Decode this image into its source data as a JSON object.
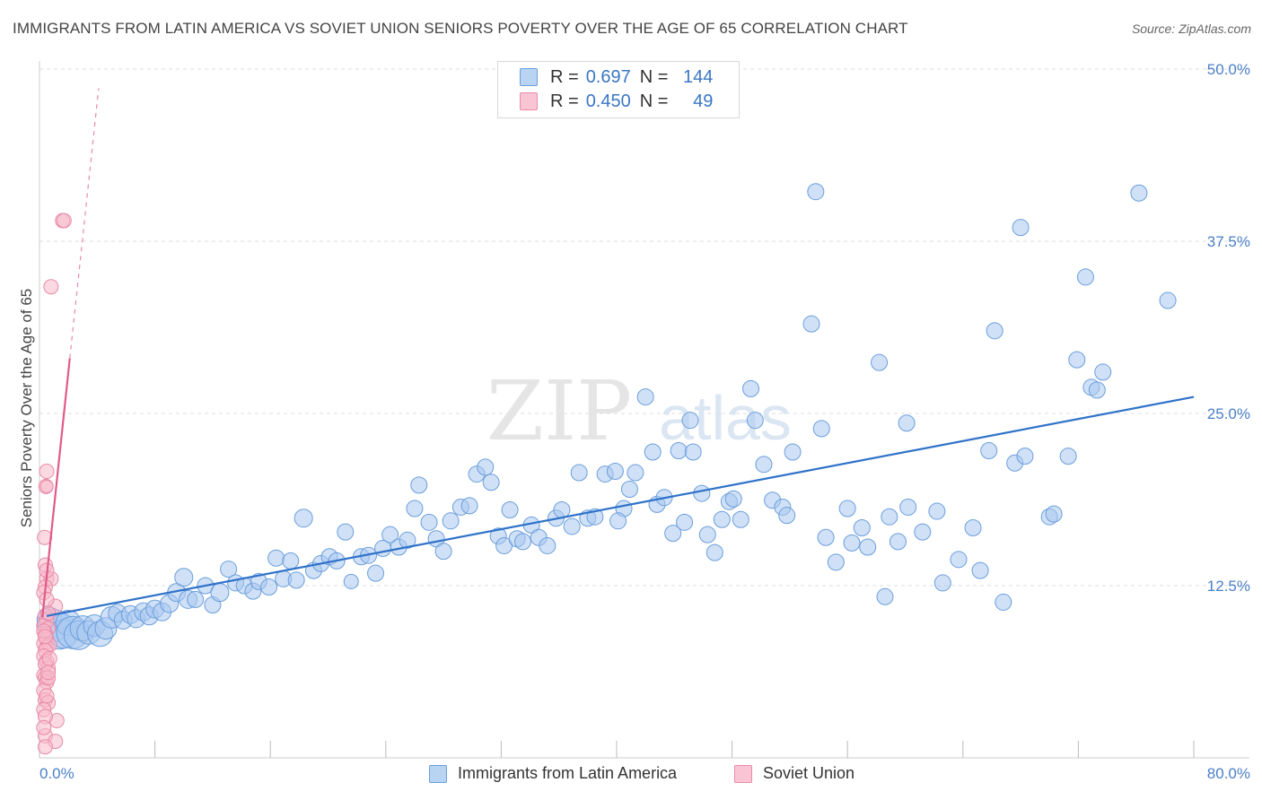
{
  "title": "IMMIGRANTS FROM LATIN AMERICA VS SOVIET UNION SENIORS POVERTY OVER THE AGE OF 65 CORRELATION CHART",
  "source": "Source: ZipAtlas.com",
  "watermark": {
    "zip": "ZIP",
    "atlas": "atlas"
  },
  "legend": {
    "rows": [
      {
        "r_label": "R =",
        "r_value": "0.697",
        "n_label": "N =",
        "n_value": "144"
      },
      {
        "r_label": "R =",
        "r_value": "0.450",
        "n_label": "N =",
        "n_value": "49"
      }
    ]
  },
  "colors": {
    "blue_fill": "#a9c8f0",
    "blue_stroke": "#6a9edb",
    "blue_line": "#2f72c9",
    "pink_fill": "#f7b9cb",
    "pink_stroke": "#e98aa8",
    "pink_line": "#e05a8a",
    "grid": "#dedede",
    "tick_label": "#4a7fc7"
  },
  "chart_data": {
    "type": "scatter",
    "xlabel": "",
    "ylabel": "Seniors Poverty Over the Age of 65",
    "xlim": [
      0,
      80
    ],
    "ylim": [
      0,
      50
    ],
    "x_tick_labels": [
      "0.0%",
      "80.0%"
    ],
    "y_ticks": [
      12.5,
      25.0,
      37.5,
      50.0
    ],
    "y_tick_labels": [
      "12.5%",
      "25.0%",
      "37.5%",
      "50.0%"
    ],
    "grid": true,
    "legend_position": "top-center",
    "series": [
      {
        "name": "Immigrants from Latin America",
        "color": "blue",
        "trendline": {
          "x": [
            0.5,
            80
          ],
          "y": [
            10.3,
            26.2
          ]
        },
        "points": [
          [
            0.7,
            10.0,
            14
          ],
          [
            1.0,
            9.6,
            18
          ],
          [
            1.4,
            9.2,
            20
          ],
          [
            1.7,
            9.0,
            16
          ],
          [
            2.0,
            9.8,
            14
          ],
          [
            2.3,
            9.1,
            18
          ],
          [
            2.7,
            8.9,
            16
          ],
          [
            3.0,
            9.4,
            14
          ],
          [
            3.4,
            9.1,
            13
          ],
          [
            3.8,
            9.6,
            12
          ],
          [
            4.2,
            9.0,
            14
          ],
          [
            4.6,
            9.4,
            12
          ],
          [
            5.0,
            10.2,
            12
          ],
          [
            5.4,
            10.5,
            10
          ],
          [
            5.8,
            10.0,
            10
          ],
          [
            6.3,
            10.4,
            10
          ],
          [
            6.7,
            10.1,
            10
          ],
          [
            7.2,
            10.6,
            10
          ],
          [
            7.6,
            10.3,
            10
          ],
          [
            8.0,
            10.8,
            10
          ],
          [
            8.5,
            10.6,
            10
          ],
          [
            9.0,
            11.2,
            10
          ],
          [
            9.5,
            12.0,
            10
          ],
          [
            10.0,
            13.1,
            10
          ],
          [
            10.3,
            11.5,
            10
          ],
          [
            10.8,
            11.5,
            9
          ],
          [
            11.5,
            12.5,
            9
          ],
          [
            12.0,
            11.1,
            9
          ],
          [
            12.5,
            12.0,
            10
          ],
          [
            13.1,
            13.7,
            9
          ],
          [
            13.6,
            12.7,
            9
          ],
          [
            14.2,
            12.5,
            9
          ],
          [
            14.8,
            12.1,
            9
          ],
          [
            15.2,
            12.8,
            9
          ],
          [
            15.9,
            12.4,
            9
          ],
          [
            16.4,
            14.5,
            9
          ],
          [
            16.9,
            13.0,
            9
          ],
          [
            17.4,
            14.3,
            9
          ],
          [
            17.8,
            12.9,
            9
          ],
          [
            18.3,
            17.4,
            10
          ],
          [
            19.0,
            13.6,
            9
          ],
          [
            19.5,
            14.1,
            9
          ],
          [
            20.1,
            14.6,
            9
          ],
          [
            20.6,
            14.3,
            9
          ],
          [
            21.2,
            16.4,
            9
          ],
          [
            21.6,
            12.8,
            8
          ],
          [
            22.3,
            14.6,
            9
          ],
          [
            22.8,
            14.7,
            9
          ],
          [
            23.3,
            13.4,
            9
          ],
          [
            23.8,
            15.2,
            9
          ],
          [
            24.3,
            16.2,
            9
          ],
          [
            24.9,
            15.3,
            9
          ],
          [
            25.5,
            15.8,
            9
          ],
          [
            26.0,
            18.1,
            9
          ],
          [
            26.3,
            19.8,
            9
          ],
          [
            27.0,
            17.1,
            9
          ],
          [
            27.5,
            15.9,
            9
          ],
          [
            28.0,
            15.0,
            9
          ],
          [
            28.5,
            17.2,
            9
          ],
          [
            29.2,
            18.2,
            9
          ],
          [
            29.8,
            18.3,
            9
          ],
          [
            30.3,
            20.6,
            9
          ],
          [
            30.9,
            21.1,
            9
          ],
          [
            31.3,
            20.0,
            9
          ],
          [
            31.8,
            16.1,
            9
          ],
          [
            32.2,
            15.4,
            9
          ],
          [
            32.6,
            18.0,
            9
          ],
          [
            33.1,
            15.9,
            9
          ],
          [
            33.5,
            15.7,
            9
          ],
          [
            34.1,
            16.9,
            9
          ],
          [
            34.6,
            16.0,
            9
          ],
          [
            35.2,
            15.4,
            9
          ],
          [
            35.8,
            17.4,
            9
          ],
          [
            36.2,
            18.0,
            9
          ],
          [
            36.9,
            16.8,
            9
          ],
          [
            37.4,
            20.7,
            9
          ],
          [
            38.0,
            17.4,
            9
          ],
          [
            38.5,
            17.5,
            9
          ],
          [
            39.2,
            20.6,
            9
          ],
          [
            39.9,
            20.8,
            9
          ],
          [
            40.5,
            18.1,
            9
          ],
          [
            40.9,
            19.5,
            9
          ],
          [
            41.3,
            20.7,
            9
          ],
          [
            42.0,
            26.2,
            9
          ],
          [
            42.5,
            22.2,
            9
          ],
          [
            42.8,
            18.4,
            9
          ],
          [
            43.3,
            18.9,
            9
          ],
          [
            43.9,
            16.3,
            9
          ],
          [
            44.3,
            22.3,
            9
          ],
          [
            44.7,
            17.1,
            9
          ],
          [
            45.1,
            24.5,
            9
          ],
          [
            45.3,
            22.2,
            9
          ],
          [
            45.9,
            19.2,
            9
          ],
          [
            46.3,
            16.2,
            9
          ],
          [
            46.8,
            14.9,
            9
          ],
          [
            47.3,
            17.3,
            9
          ],
          [
            47.8,
            18.6,
            9
          ],
          [
            48.1,
            18.8,
            9
          ],
          [
            48.6,
            17.3,
            9
          ],
          [
            49.3,
            26.8,
            9
          ],
          [
            49.6,
            24.5,
            9
          ],
          [
            50.2,
            21.3,
            9
          ],
          [
            50.8,
            18.7,
            9
          ],
          [
            51.5,
            18.2,
            9
          ],
          [
            51.8,
            17.6,
            9
          ],
          [
            52.2,
            22.2,
            9
          ],
          [
            53.5,
            31.5,
            9
          ],
          [
            53.8,
            41.1,
            9
          ],
          [
            54.2,
            23.9,
            9
          ],
          [
            54.5,
            16.0,
            9
          ],
          [
            55.2,
            14.2,
            9
          ],
          [
            56.0,
            18.1,
            9
          ],
          [
            56.3,
            15.6,
            9
          ],
          [
            57.0,
            16.7,
            9
          ],
          [
            57.4,
            15.3,
            9
          ],
          [
            58.2,
            28.7,
            9
          ],
          [
            58.6,
            11.7,
            9
          ],
          [
            58.9,
            17.5,
            9
          ],
          [
            59.5,
            15.7,
            9
          ],
          [
            60.1,
            24.3,
            9
          ],
          [
            60.2,
            18.2,
            9
          ],
          [
            61.2,
            16.4,
            9
          ],
          [
            62.2,
            17.9,
            9
          ],
          [
            62.6,
            12.7,
            9
          ],
          [
            63.7,
            14.4,
            9
          ],
          [
            64.7,
            16.7,
            9
          ],
          [
            65.2,
            13.6,
            9
          ],
          [
            65.8,
            22.3,
            9
          ],
          [
            66.2,
            31.0,
            9
          ],
          [
            66.8,
            11.3,
            9
          ],
          [
            67.6,
            21.4,
            9
          ],
          [
            68.0,
            38.5,
            9
          ],
          [
            68.3,
            21.9,
            9
          ],
          [
            70.0,
            17.5,
            9
          ],
          [
            70.3,
            17.7,
            9
          ],
          [
            71.3,
            21.9,
            9
          ],
          [
            71.9,
            28.9,
            9
          ],
          [
            72.5,
            34.9,
            9
          ],
          [
            72.9,
            26.9,
            9
          ],
          [
            73.3,
            26.7,
            9
          ],
          [
            73.7,
            28.0,
            9
          ],
          [
            76.2,
            41.0,
            9
          ],
          [
            78.2,
            33.2,
            9
          ],
          [
            40.1,
            17.2,
            9
          ]
        ]
      },
      {
        "name": "Soviet Union",
        "color": "pink",
        "trendline": {
          "x": [
            0.2,
            2.1
          ],
          "y": [
            10.2,
            29.0
          ]
        },
        "trendline_ext": {
          "x": [
            2.1,
            4.1
          ],
          "y": [
            29.0,
            48.6
          ]
        },
        "points": [
          [
            1.6,
            39.0,
            8
          ],
          [
            1.7,
            39.0,
            8
          ],
          [
            0.8,
            34.2,
            8
          ],
          [
            0.5,
            20.8,
            8
          ],
          [
            0.45,
            19.7,
            8
          ],
          [
            0.5,
            19.7,
            7
          ],
          [
            0.35,
            16.0,
            8
          ],
          [
            0.4,
            14.0,
            8
          ],
          [
            0.5,
            13.0,
            8
          ],
          [
            0.8,
            13.0,
            8
          ],
          [
            0.4,
            12.4,
            8
          ],
          [
            0.3,
            12.0,
            8
          ],
          [
            1.1,
            11.0,
            8
          ],
          [
            0.4,
            10.3,
            8
          ],
          [
            0.5,
            10.0,
            8
          ],
          [
            0.3,
            9.6,
            8
          ],
          [
            0.6,
            9.4,
            8
          ],
          [
            0.4,
            9.0,
            8
          ],
          [
            0.5,
            8.6,
            8
          ],
          [
            0.3,
            8.3,
            8
          ],
          [
            0.5,
            8.0,
            8
          ],
          [
            0.7,
            8.2,
            8
          ],
          [
            0.4,
            7.8,
            8
          ],
          [
            0.3,
            7.4,
            8
          ],
          [
            0.5,
            7.0,
            8
          ],
          [
            0.6,
            6.5,
            8
          ],
          [
            0.3,
            6.0,
            8
          ],
          [
            0.4,
            5.8,
            8
          ],
          [
            0.5,
            5.5,
            8
          ],
          [
            0.3,
            4.9,
            8
          ],
          [
            0.4,
            4.2,
            8
          ],
          [
            0.6,
            4.0,
            8
          ],
          [
            0.3,
            3.5,
            8
          ],
          [
            1.2,
            2.7,
            8
          ],
          [
            0.4,
            1.6,
            8
          ],
          [
            1.1,
            1.2,
            8
          ],
          [
            0.4,
            0.8,
            8
          ],
          [
            0.6,
            10.5,
            8
          ],
          [
            0.5,
            11.5,
            8
          ],
          [
            0.4,
            6.8,
            8
          ],
          [
            0.7,
            7.2,
            8
          ],
          [
            0.3,
            9.2,
            8
          ],
          [
            0.6,
            5.8,
            8
          ],
          [
            0.5,
            4.5,
            8
          ],
          [
            0.4,
            3.0,
            8
          ],
          [
            0.3,
            2.2,
            8
          ],
          [
            0.5,
            13.6,
            8
          ],
          [
            0.4,
            8.8,
            8
          ],
          [
            0.6,
            6.2,
            8
          ]
        ]
      }
    ]
  }
}
